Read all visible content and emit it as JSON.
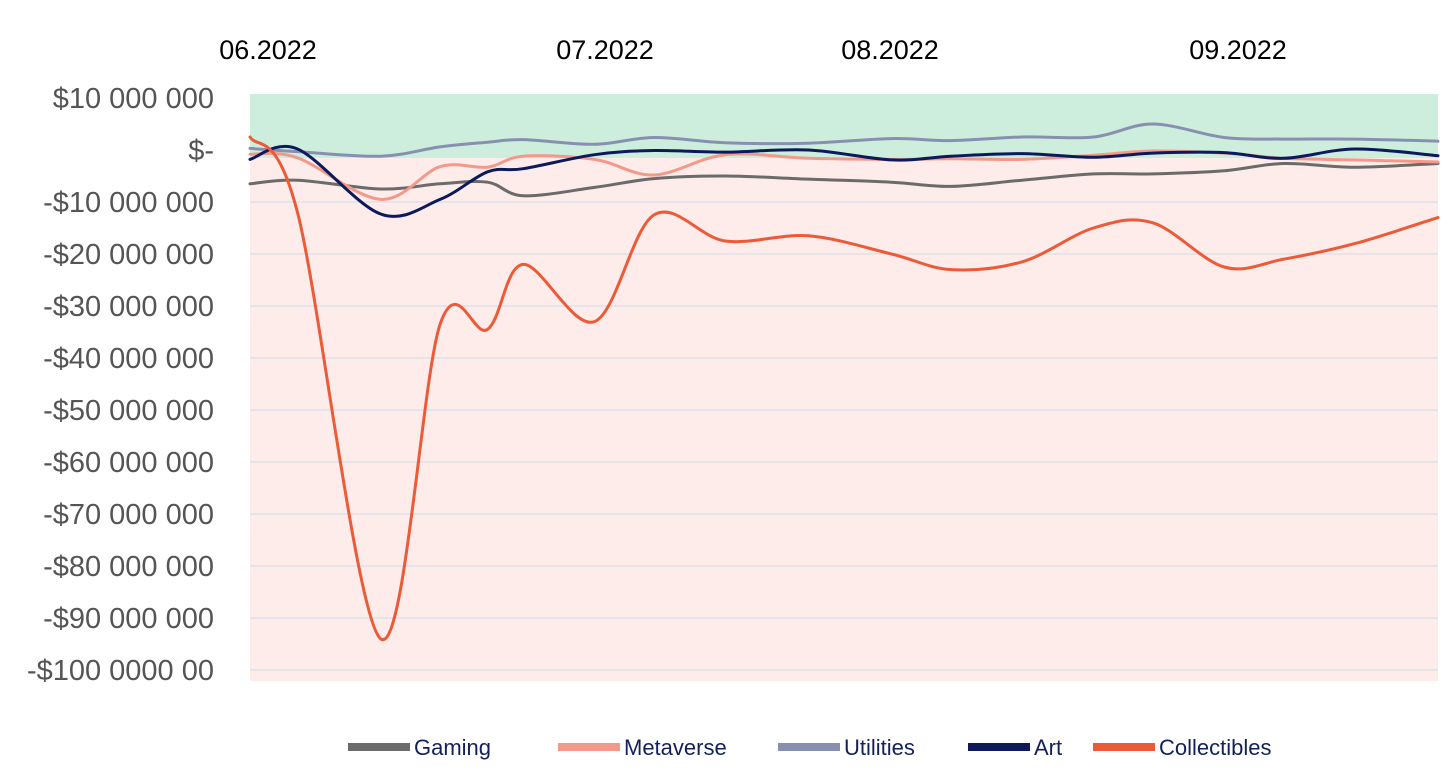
{
  "chart_data": {
    "type": "line",
    "title": "",
    "xlabel": "",
    "ylabel": "",
    "x_labels": [
      "06.2022",
      "07.2022",
      "08.2022",
      "09.2022"
    ],
    "x_label_positions": [
      0.0,
      0.3,
      0.54,
      0.83
    ],
    "y_ticks": [
      {
        "value": 10000000,
        "label": "$10 000 000"
      },
      {
        "value": 0,
        "label": "$-"
      },
      {
        "value": -10000000,
        "label": "-$10 000 000"
      },
      {
        "value": -20000000,
        "label": "-$20 000 000"
      },
      {
        "value": -30000000,
        "label": "-$30 000 000"
      },
      {
        "value": -40000000,
        "label": "-$40 000 000"
      },
      {
        "value": -50000000,
        "label": "-$50 000 000"
      },
      {
        "value": -60000000,
        "label": "-$60 000 000"
      },
      {
        "value": -70000000,
        "label": "-$70 000 000"
      },
      {
        "value": -80000000,
        "label": "-$80 000 000"
      },
      {
        "value": -90000000,
        "label": "-$90 000 000"
      },
      {
        "value": -100000000,
        "label": "-$100 0000 00"
      }
    ],
    "ylim": [
      -102000000,
      12000000
    ],
    "grid": true,
    "positive_region_color": "#cdeedd",
    "negative_region_color": "#fdecea",
    "gridline_color": "#dde2ea",
    "legend_position": "bottom",
    "x": [
      0.0,
      0.04,
      0.11,
      0.16,
      0.2,
      0.23,
      0.29,
      0.34,
      0.4,
      0.47,
      0.54,
      0.59,
      0.65,
      0.71,
      0.76,
      0.82,
      0.87,
      0.93,
      1.0
    ],
    "series": [
      {
        "name": "Gaming",
        "color": "#6b6b6b",
        "values": [
          -6500000,
          -5800000,
          -7500000,
          -6500000,
          -6200000,
          -8800000,
          -7200000,
          -5500000,
          -5000000,
          -5600000,
          -6200000,
          -7000000,
          -5800000,
          -4600000,
          -4600000,
          -4000000,
          -2600000,
          -3300000,
          -2600000
        ]
      },
      {
        "name": "Metaverse",
        "color": "#f4998a",
        "values": [
          -800000,
          -1500000,
          -9500000,
          -3200000,
          -3300000,
          -1200000,
          -1800000,
          -4800000,
          -900000,
          -1600000,
          -1800000,
          -1700000,
          -1800000,
          -1000000,
          -200000,
          -600000,
          -1600000,
          -1900000,
          -2300000
        ]
      },
      {
        "name": "Utilities",
        "color": "#8890b0",
        "values": [
          300000,
          -300000,
          -1200000,
          600000,
          1500000,
          2000000,
          1100000,
          2400000,
          1400000,
          1300000,
          2200000,
          1800000,
          2500000,
          2500000,
          5000000,
          2400000,
          2100000,
          2100000,
          1700000
        ]
      },
      {
        "name": "Art",
        "color": "#0c1a5c",
        "values": [
          -1800000,
          200000,
          -12300000,
          -9500000,
          -4200000,
          -3600000,
          -900000,
          -100000,
          -400000,
          0,
          -1900000,
          -1200000,
          -700000,
          -1400000,
          -600000,
          -500000,
          -1600000,
          200000,
          -1100000
        ]
      },
      {
        "name": "Collectibles",
        "color": "#ec5a38",
        "values": [
          2500000,
          -12000000,
          -94000000,
          -33500000,
          -34500000,
          -22000000,
          -33000000,
          -12500000,
          -17500000,
          -16500000,
          -20000000,
          -23000000,
          -21500000,
          -15000000,
          -14000000,
          -22500000,
          -21000000,
          -18000000,
          -13000000
        ]
      }
    ]
  }
}
